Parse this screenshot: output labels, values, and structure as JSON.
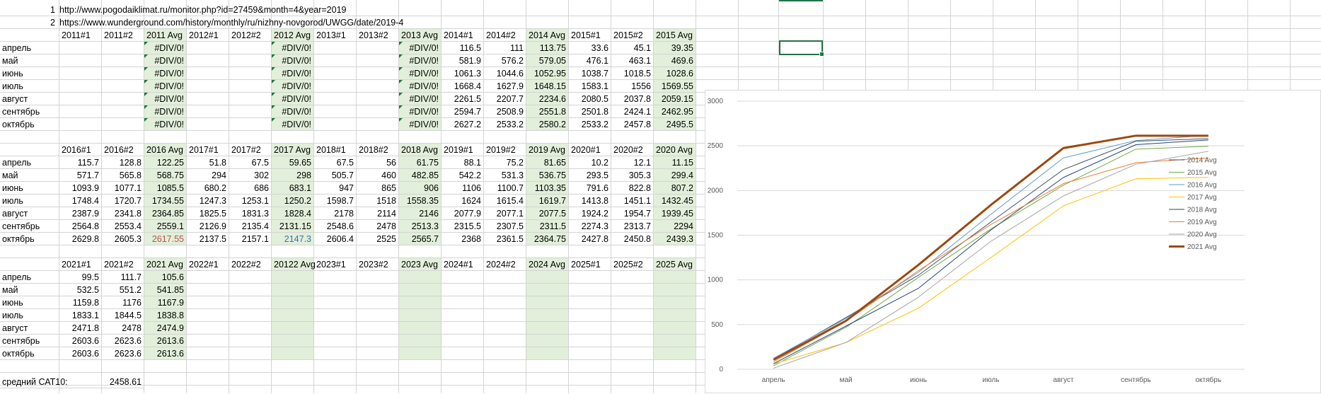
{
  "urls": [
    {
      "row": "1",
      "text": "http://www.pogodaiklimat.ru/monitor.php?id=27459&month=4&year=2019"
    },
    {
      "row": "2",
      "text": "https://www.wunderground.com/history/monthly/ru/nizhny-novgorod/UWGG/date/2019-4"
    }
  ],
  "months": [
    "апрель",
    "май",
    "июнь",
    "июль",
    "август",
    "сентябрь",
    "октябрь"
  ],
  "blocks": [
    {
      "headers": [
        "2011#1",
        "2011#2",
        "2011 Avg",
        "2012#1",
        "2012#2",
        "2012 Avg",
        "2013#1",
        "2013#2",
        "2013 Avg",
        "2014#1",
        "2014#2",
        "2014 Avg",
        "2015#1",
        "2015#2",
        "2015 Avg"
      ],
      "rows": [
        [
          "",
          "",
          "#DIV/0!",
          "",
          "",
          "#DIV/0!",
          "",
          "",
          "#DIV/0!",
          "116.5",
          "111",
          "113.75",
          "33.6",
          "45.1",
          "39.35"
        ],
        [
          "",
          "",
          "#DIV/0!",
          "",
          "",
          "#DIV/0!",
          "",
          "",
          "#DIV/0!",
          "581.9",
          "576.2",
          "579.05",
          "476.1",
          "463.1",
          "469.6"
        ],
        [
          "",
          "",
          "#DIV/0!",
          "",
          "",
          "#DIV/0!",
          "",
          "",
          "#DIV/0!",
          "1061.3",
          "1044.6",
          "1052.95",
          "1038.7",
          "1018.5",
          "1028.6"
        ],
        [
          "",
          "",
          "#DIV/0!",
          "",
          "",
          "#DIV/0!",
          "",
          "",
          "#DIV/0!",
          "1668.4",
          "1627.9",
          "1648.15",
          "1583.1",
          "1556",
          "1569.55"
        ],
        [
          "",
          "",
          "#DIV/0!",
          "",
          "",
          "#DIV/0!",
          "",
          "",
          "#DIV/0!",
          "2261.5",
          "2207.7",
          "2234.6",
          "2080.5",
          "2037.8",
          "2059.15"
        ],
        [
          "",
          "",
          "#DIV/0!",
          "",
          "",
          "#DIV/0!",
          "",
          "",
          "#DIV/0!",
          "2594.7",
          "2508.9",
          "2551.8",
          "2501.8",
          "2424.1",
          "2462.95"
        ],
        [
          "",
          "",
          "#DIV/0!",
          "",
          "",
          "#DIV/0!",
          "",
          "",
          "#DIV/0!",
          "2627.2",
          "2533.2",
          "2580.2",
          "2533.2",
          "2457.8",
          "2495.5"
        ]
      ]
    },
    {
      "headers": [
        "2016#1",
        "2016#2",
        "2016 Avg",
        "2017#1",
        "2017#2",
        "2017 Avg",
        "2018#1",
        "2018#2",
        "2018 Avg",
        "2019#1",
        "2019#2",
        "2019 Avg",
        "2020#1",
        "2020#2",
        "2020 Avg"
      ],
      "rows": [
        [
          "115.7",
          "128.8",
          "122.25",
          "51.8",
          "67.5",
          "59.65",
          "67.5",
          "56",
          "61.75",
          "88.1",
          "75.2",
          "81.65",
          "10.2",
          "12.1",
          "11.15"
        ],
        [
          "571.7",
          "565.8",
          "568.75",
          "294",
          "302",
          "298",
          "505.7",
          "460",
          "482.85",
          "542.2",
          "531.3",
          "536.75",
          "293.5",
          "305.3",
          "299.4"
        ],
        [
          "1093.9",
          "1077.1",
          "1085.5",
          "680.2",
          "686",
          "683.1",
          "947",
          "865",
          "906",
          "1106",
          "1100.7",
          "1103.35",
          "791.6",
          "822.8",
          "807.2"
        ],
        [
          "1748.4",
          "1720.7",
          "1734.55",
          "1247.3",
          "1253.1",
          "1250.2",
          "1598.7",
          "1518",
          "1558.35",
          "1624",
          "1615.4",
          "1619.7",
          "1413.8",
          "1451.1",
          "1432.45"
        ],
        [
          "2387.9",
          "2341.8",
          "2364.85",
          "1825.5",
          "1831.3",
          "1828.4",
          "2178",
          "2114",
          "2146",
          "2077.9",
          "2077.1",
          "2077.5",
          "1924.2",
          "1954.7",
          "1939.45"
        ],
        [
          "2564.8",
          "2553.4",
          "2559.1",
          "2126.9",
          "2135.4",
          "2131.15",
          "2548.6",
          "2478",
          "2513.3",
          "2315.5",
          "2307.5",
          "2311.5",
          "2274.3",
          "2313.7",
          "2294"
        ],
        [
          "2629.8",
          "2605.3",
          "2617.55",
          "2137.5",
          "2157.1",
          "2147.3",
          "2606.4",
          "2525",
          "2565.7",
          "2368",
          "2361.5",
          "2364.75",
          "2427.8",
          "2450.8",
          "2439.3"
        ]
      ]
    },
    {
      "headers": [
        "2021#1",
        "2021#2",
        "2021 Avg",
        "2022#1",
        "2022#2",
        "20122 Avg",
        "2023#1",
        "2023#2",
        "2023 Avg",
        "2024#1",
        "2024#2",
        "2024 Avg",
        "2025#1",
        "2025#2",
        "2025 Avg"
      ],
      "rows": [
        [
          "99.5",
          "111.7",
          "105.6",
          "",
          "",
          "",
          "",
          "",
          "",
          "",
          "",
          "",
          "",
          "",
          ""
        ],
        [
          "532.5",
          "551.2",
          "541.85",
          "",
          "",
          "",
          "",
          "",
          "",
          "",
          "",
          "",
          "",
          "",
          ""
        ],
        [
          "1159.8",
          "1176",
          "1167.9",
          "",
          "",
          "",
          "",
          "",
          "",
          "",
          "",
          "",
          "",
          "",
          ""
        ],
        [
          "1833.1",
          "1844.5",
          "1838.8",
          "",
          "",
          "",
          "",
          "",
          "",
          "",
          "",
          "",
          "",
          "",
          ""
        ],
        [
          "2471.8",
          "2478",
          "2474.9",
          "",
          "",
          "",
          "",
          "",
          "",
          "",
          "",
          "",
          "",
          "",
          ""
        ],
        [
          "2603.6",
          "2623.6",
          "2613.6",
          "",
          "",
          "",
          "",
          "",
          "",
          "",
          "",
          "",
          "",
          "",
          ""
        ],
        [
          "2603.6",
          "2623.6",
          "2613.6",
          "",
          "",
          "",
          "",
          "",
          "",
          "",
          "",
          "",
          "",
          "",
          ""
        ]
      ]
    }
  ],
  "summary": {
    "label": "средний САТ10:",
    "value": "2458.61"
  },
  "colors": {
    "accent": "#217346",
    "avg_fill": "#e2efda",
    "red_value": "#c0504d",
    "blue_value": "#2e75b6"
  },
  "chart_data": {
    "type": "line",
    "categories": [
      "апрель",
      "май",
      "июнь",
      "июль",
      "август",
      "сентябрь",
      "октябрь"
    ],
    "ylim": [
      0,
      3000
    ],
    "yticks": [
      "0",
      "500",
      "1000",
      "1500",
      "2000",
      "2500",
      "3000"
    ],
    "grid": true,
    "legend": "right",
    "series": [
      {
        "name": "2014 Avg",
        "color": "#44546a",
        "width": 1,
        "values": [
          113.75,
          579.05,
          1052.95,
          1648.15,
          2234.6,
          2551.8,
          2580.2
        ]
      },
      {
        "name": "2015 Avg",
        "color": "#70ad47",
        "width": 1,
        "values": [
          39.35,
          469.6,
          1028.6,
          1569.55,
          2059.15,
          2462.95,
          2495.5
        ]
      },
      {
        "name": "2016 Avg",
        "color": "#5b9bd5",
        "width": 1,
        "values": [
          122.25,
          568.75,
          1085.5,
          1734.55,
          2364.85,
          2559.1,
          2617.55
        ]
      },
      {
        "name": "2017 Avg",
        "color": "#ffc000",
        "width": 1,
        "values": [
          59.65,
          298,
          683.1,
          1250.2,
          1828.4,
          2131.15,
          2147.3
        ]
      },
      {
        "name": "2018 Avg",
        "color": "#264478",
        "width": 1,
        "values": [
          61.75,
          482.85,
          906,
          1558.35,
          2146,
          2513.3,
          2565.7
        ]
      },
      {
        "name": "2019 Avg",
        "color": "#ed7d31",
        "width": 1,
        "values": [
          81.65,
          536.75,
          1103.35,
          1619.7,
          2077.5,
          2311.5,
          2364.75
        ]
      },
      {
        "name": "2020 Avg",
        "color": "#a5a5a5",
        "width": 1,
        "values": [
          11.15,
          299.4,
          807.2,
          1432.45,
          1939.45,
          2294,
          2439.3
        ]
      },
      {
        "name": "2021 Avg",
        "color": "#9e480e",
        "width": 3,
        "values": [
          105.6,
          541.85,
          1167.9,
          1838.8,
          2474.9,
          2613.6,
          2613.6
        ]
      }
    ]
  }
}
